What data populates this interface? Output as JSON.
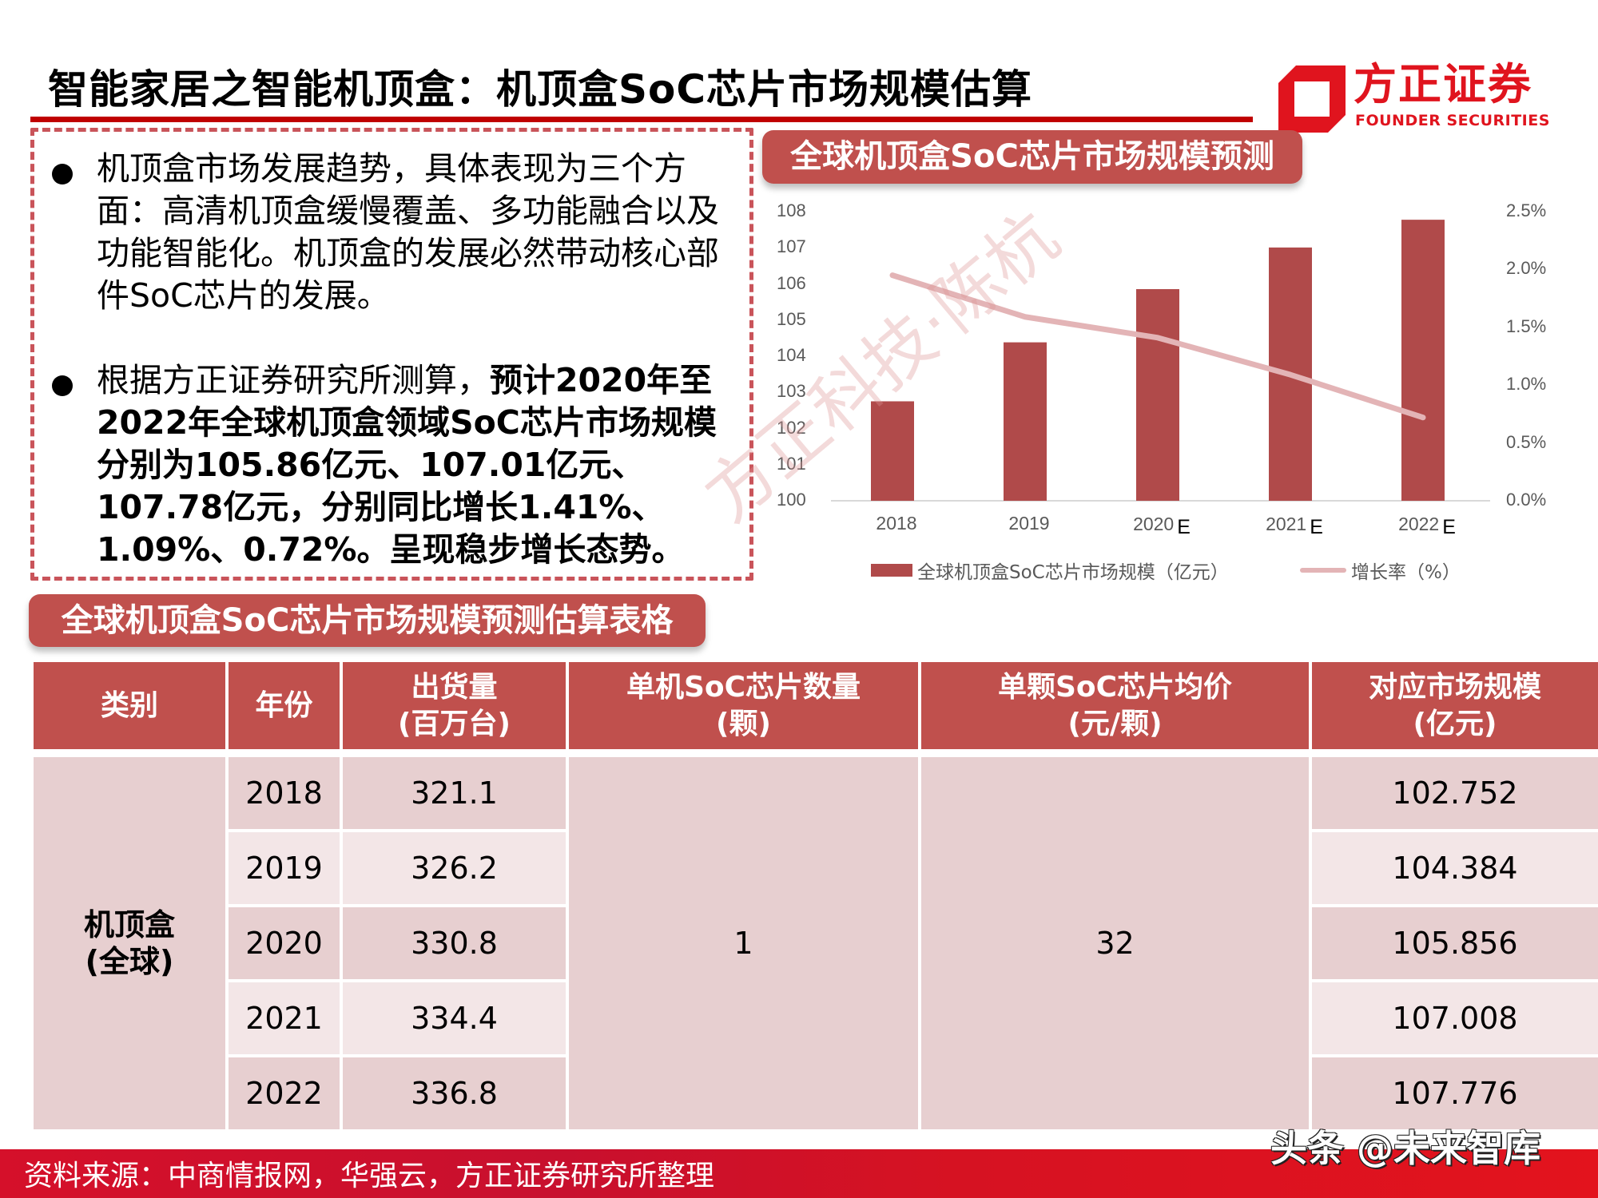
{
  "page": {
    "title": "智能家居之智能机顶盒：机顶盒SoC芯片市场规模估算"
  },
  "logo": {
    "name_cn": "方正证券",
    "name_en": "FOUNDER SECURITIES",
    "color": "#e0141e"
  },
  "summary": {
    "bullet1": "机顶盒市场发展趋势，具体表现为三个方面：高清机顶盒缓慢覆盖、多功能融合以及功能智能化。机顶盒的发展必然带动核心部件SoC芯片的发展。",
    "bullet2_normal": "根据方正证券研究所测算，",
    "bullet2_bold": "预计2020年至2022年全球机顶盒领域SoC芯片市场规模分别为105.86亿元、107.01亿元、107.78亿元，分别同比增长1.41%、1.09%、0.72%。呈现稳步增长态势。"
  },
  "chart_section": {
    "title": "全球机顶盒SoC芯片市场规模预测"
  },
  "chart_data": {
    "type": "bar",
    "title": "全球机顶盒SoC芯片市场规模预测",
    "categories": [
      "2018",
      "2019",
      "2020E",
      "2021E",
      "2022E"
    ],
    "x_tick_labels": [
      {
        "year": "2018",
        "suffix": ""
      },
      {
        "year": "2019",
        "suffix": ""
      },
      {
        "year": "2020",
        "suffix": "E"
      },
      {
        "year": "2021",
        "suffix": "E"
      },
      {
        "year": "2022",
        "suffix": "E"
      }
    ],
    "series": [
      {
        "name": "全球机顶盒SoC芯片市场规模（亿元）",
        "type": "bar",
        "axis": "left",
        "color": "#b04a4a",
        "values": [
          102.752,
          104.384,
          105.856,
          107.008,
          107.776
        ]
      },
      {
        "name": "增长率（%）",
        "type": "line",
        "axis": "right",
        "color": "#e3b4b6",
        "values": [
          1.95,
          1.59,
          1.41,
          1.09,
          0.72
        ]
      }
    ],
    "y_left": {
      "min": 100,
      "max": 108,
      "ticks": [
        "108",
        "107",
        "106",
        "105",
        "104",
        "103",
        "102",
        "101",
        "100"
      ]
    },
    "y_right": {
      "min": 0,
      "max": 2.5,
      "ticks": [
        "2.5%",
        "2.0%",
        "1.5%",
        "1.0%",
        "0.5%",
        "0.0%"
      ]
    },
    "xlabel": "",
    "ylabel": "",
    "grid": false,
    "legend_position": "bottom",
    "legend": [
      "全球机顶盒SoC芯片市场规模（亿元）",
      "增长率（%）"
    ]
  },
  "table_section": {
    "title": "全球机顶盒SoC芯片市场规模预测估算表格",
    "headers": [
      {
        "line1": "类别",
        "line2": ""
      },
      {
        "line1": "年份",
        "line2": ""
      },
      {
        "line1": "出货量",
        "line2": "(百万台)"
      },
      {
        "line1": "单机SoC芯片数量",
        "line2": "(颗)"
      },
      {
        "line1": "单颗SoC芯片均价",
        "line2": "(元/颗)"
      },
      {
        "line1": "对应市场规模",
        "line2": "(亿元)"
      }
    ],
    "category_line1": "机顶盒",
    "category_line2": "(全球)",
    "chips_per_unit": "1",
    "avg_price": "32",
    "rows": [
      {
        "year": "2018",
        "shipments": "321.1",
        "market_size": "102.752"
      },
      {
        "year": "2019",
        "shipments": "326.2",
        "market_size": "104.384"
      },
      {
        "year": "2020",
        "shipments": "330.8",
        "market_size": "105.856"
      },
      {
        "year": "2021",
        "shipments": "334.4",
        "market_size": "107.008"
      },
      {
        "year": "2022",
        "shipments": "336.8",
        "market_size": "107.776"
      }
    ]
  },
  "watermark": {
    "text": "方正科技·陈杭"
  },
  "footer": {
    "source": "资料来源：中商情报网，华强云，方正证券研究所整理",
    "credit": "头条 @未来智库"
  },
  "colors": {
    "accent_red": "#c00000",
    "pill_red": "#c0504d",
    "bar_red": "#b04a4a",
    "line_pink": "#e3b4b6",
    "row_dark": "#e7cfd0",
    "row_light": "#f3e6e7"
  }
}
